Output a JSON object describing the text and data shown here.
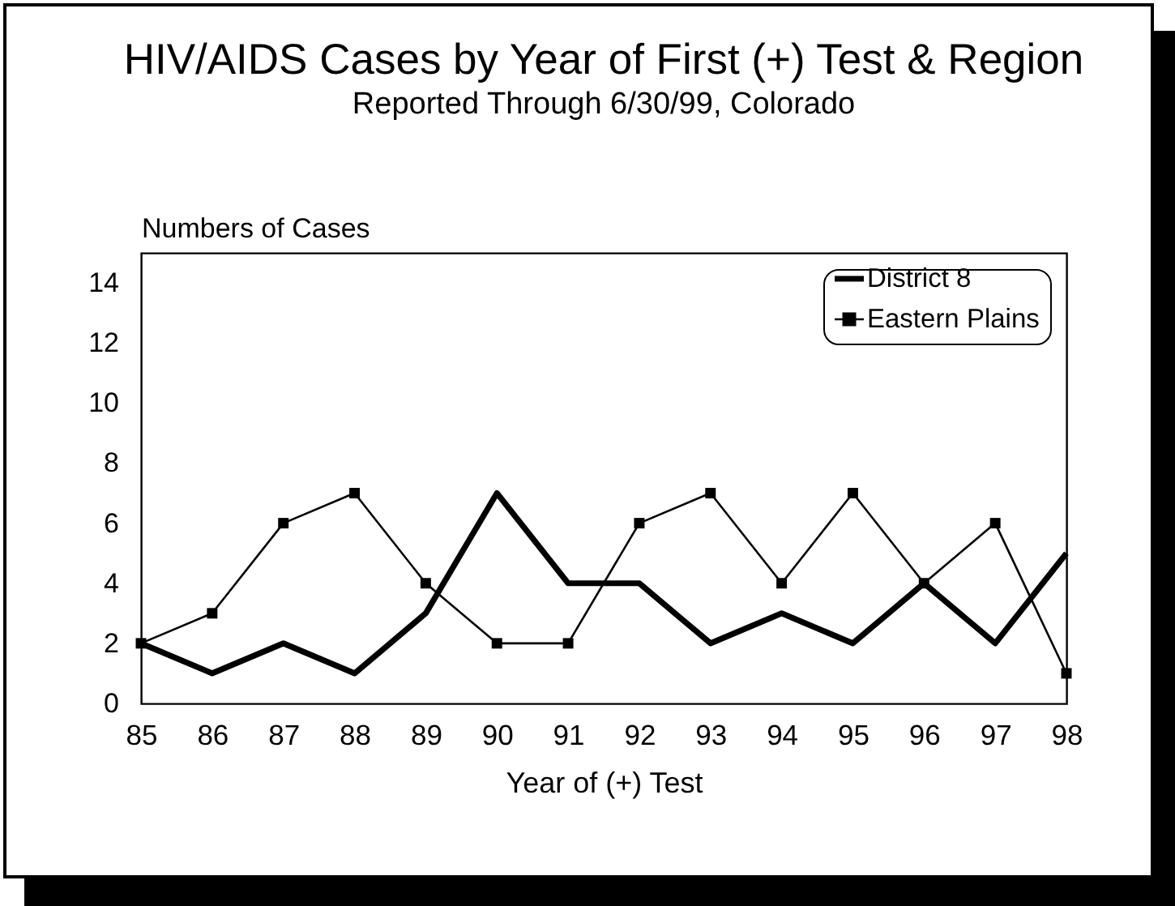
{
  "chart_data": {
    "type": "line",
    "title": "HIV/AIDS Cases by Year of First (+) Test & Region",
    "subtitle": "Reported  Through 6/30/99, Colorado",
    "xlabel": "Year of (+) Test",
    "ylabel": "Numbers of Cases",
    "x": [
      85,
      86,
      87,
      88,
      89,
      90,
      91,
      92,
      93,
      94,
      95,
      96,
      97,
      98
    ],
    "series": [
      {
        "name": "District 8",
        "color": "#000000",
        "marker": "none",
        "values": [
          2,
          1,
          2,
          1,
          3,
          7,
          4,
          4,
          2,
          3,
          2,
          4,
          2,
          5
        ]
      },
      {
        "name": "Eastern Plains",
        "color": "#000000",
        "marker": "square",
        "values": [
          2,
          3,
          6,
          7,
          4,
          2,
          2,
          6,
          7,
          4,
          7,
          4,
          6,
          1
        ]
      }
    ],
    "xlim": [
      85,
      98
    ],
    "xticks": [
      85,
      86,
      87,
      88,
      89,
      90,
      91,
      92,
      93,
      94,
      95,
      96,
      97,
      98
    ],
    "ylim": [
      0,
      15
    ],
    "yticks": [
      0,
      2,
      4,
      6,
      8,
      10,
      12,
      14
    ],
    "legend": "top right"
  }
}
